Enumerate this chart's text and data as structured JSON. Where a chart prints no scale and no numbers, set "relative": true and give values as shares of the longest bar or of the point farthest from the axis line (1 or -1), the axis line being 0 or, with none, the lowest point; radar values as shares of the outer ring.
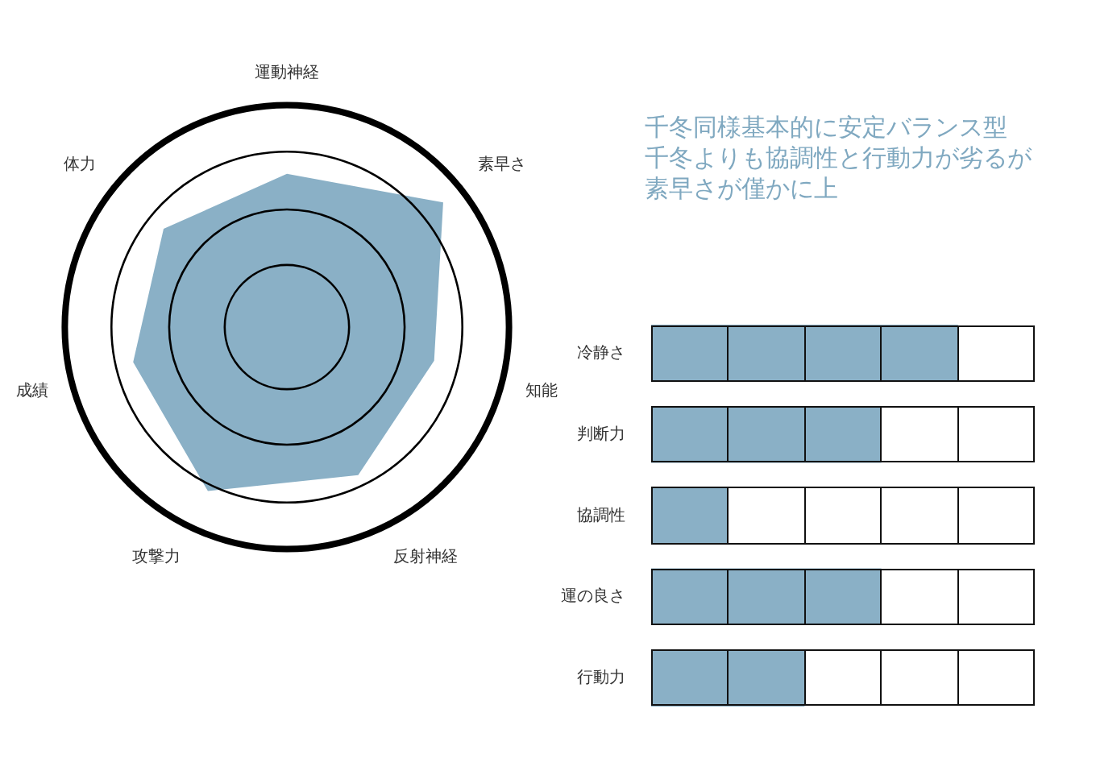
{
  "chart_data": [
    {
      "type": "radar",
      "categories": [
        "運動神経",
        "素早さ",
        "知能",
        "反射神経",
        "攻撃力",
        "成績",
        "体力"
      ],
      "relative": true,
      "grid": true,
      "legend": false,
      "marker": "none",
      "series": [
        {
          "color": "#8ab0c6",
          "values": [
            0.69,
            0.9,
            0.68,
            0.74,
            0.82,
            0.71,
            0.71
          ]
        }
      ]
    },
    {
      "type": "bar",
      "orientation": "horizontal",
      "categories": [
        "冷静さ",
        "判断力",
        "協調性",
        "運の良さ",
        "行動力"
      ],
      "values": [
        1,
        0.75,
        0.25,
        0.75,
        0.5
      ],
      "color": "#8ab0c6",
      "relative": true,
      "legend": false,
      "annotations": [
        "千冬同様基本的に安定バランス型",
        "千冬よりも協調性と行動力が劣るが",
        "素早さが僅かに上"
      ]
    }
  ]
}
